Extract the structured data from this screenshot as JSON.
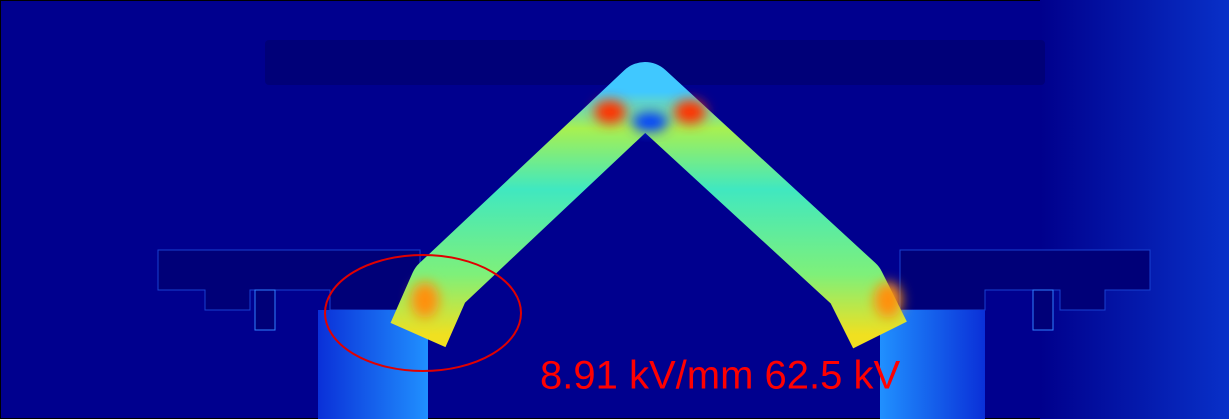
{
  "annotation": {
    "text": "8.91 kV/mm 62.5 kV"
  }
}
